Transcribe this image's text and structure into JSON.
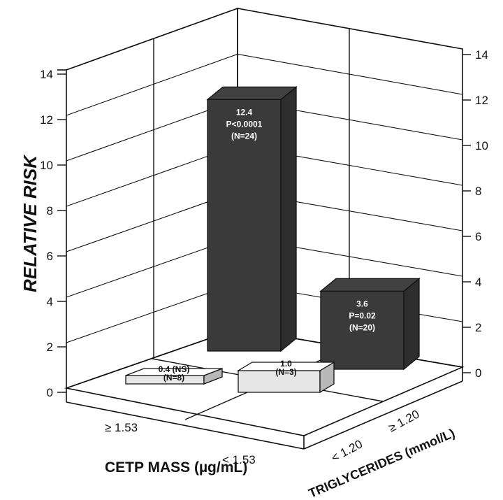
{
  "chart_data": {
    "type": "bar",
    "ylabel": "RELATIVE RISK",
    "xlabel_left": "CETP MASS (µg/mL)",
    "xlabel_right": "TRIGLYCERIDES (mmol/L)",
    "ylim": [
      0,
      14
    ],
    "yticks": [
      "0",
      "2",
      "4",
      "6",
      "8",
      "10",
      "12",
      "14"
    ],
    "cetp_categories": [
      "≥ 1.53",
      "< 1.53"
    ],
    "tg_categories": [
      "< 1.20",
      "≥ 1.20"
    ],
    "bars": [
      {
        "cetp": "< 1.53",
        "tg": "≥ 1.20",
        "value": 12.4,
        "label_lines": [
          "12.4",
          "P<0.0001",
          "(N=24)"
        ],
        "color": "#3a3a3a"
      },
      {
        "cetp": "≥ 1.53",
        "tg": "≥ 1.20",
        "value": 3.6,
        "label_lines": [
          "3.6",
          "P=0.02",
          "(N=20)"
        ],
        "color": "#3a3a3a"
      },
      {
        "cetp": "< 1.53",
        "tg": "< 1.20",
        "value": 0.4,
        "label_lines": [
          "0.4 (NS)",
          "(N=8)"
        ],
        "color": "#e6e6e6"
      },
      {
        "cetp": "≥ 1.53",
        "tg": "< 1.20",
        "value": 1.0,
        "label_lines": [
          "1.0",
          "(N=3)"
        ],
        "color": "#e6e6e6"
      }
    ]
  }
}
